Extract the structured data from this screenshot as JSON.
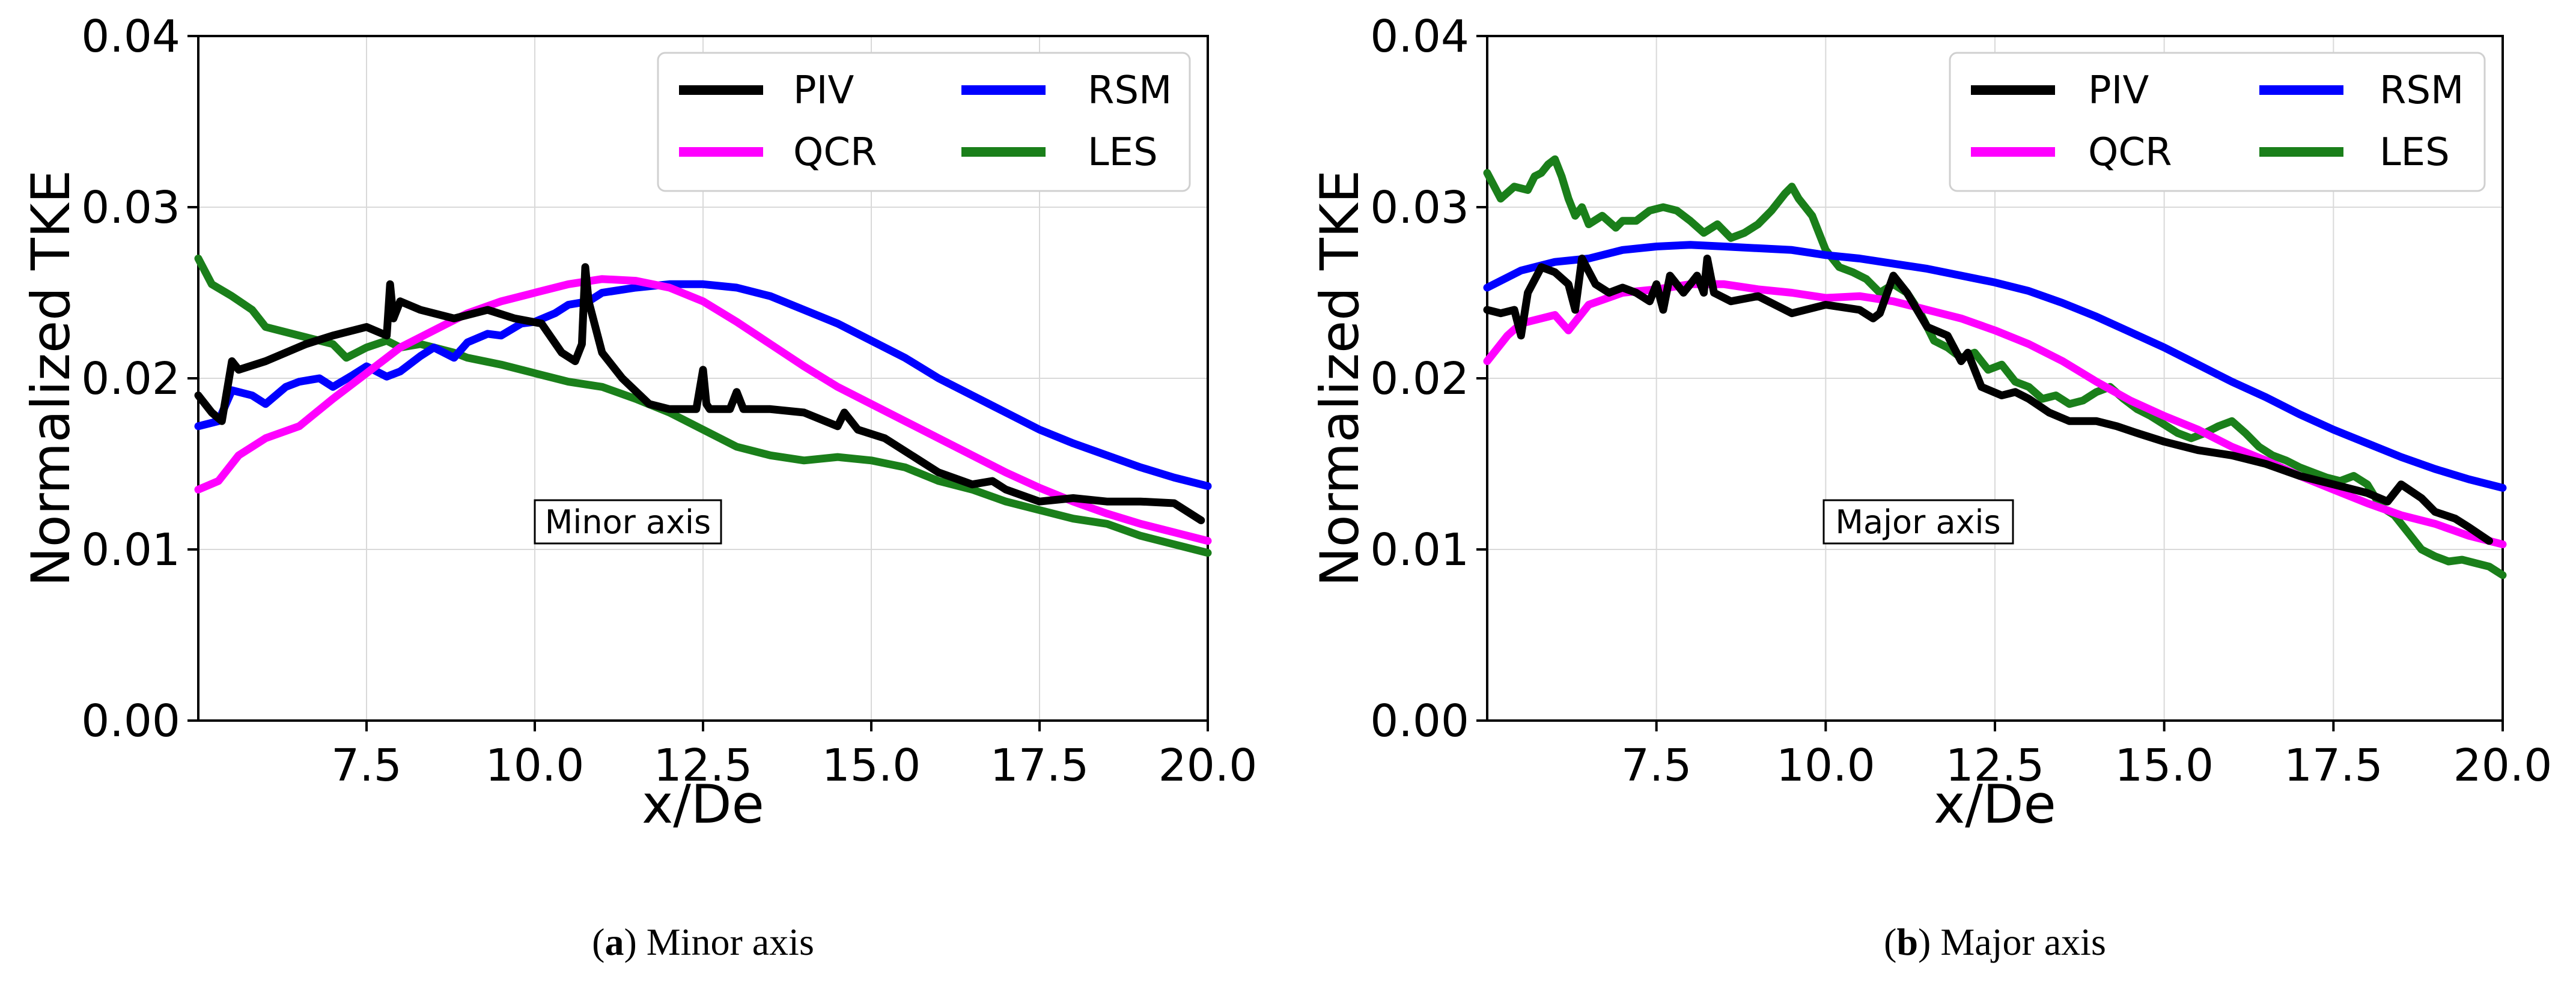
{
  "colors": {
    "PIV": "#000000",
    "QCR": "#ff00ff",
    "RSM": "#0000ff",
    "LES": "#1a7f1a"
  },
  "chart_data": [
    {
      "type": "line",
      "panel": "a",
      "caption_letter": "a",
      "caption_text": "Minor axis",
      "annotation": "Minor axis",
      "xlabel": "x/De",
      "ylabel": "Normalized TKE",
      "xlim": [
        5.0,
        20.0
      ],
      "ylim": [
        0.0,
        0.04
      ],
      "xticks": [
        "7.5",
        "10.0",
        "12.5",
        "15.0",
        "17.5",
        "20.0"
      ],
      "xtick_values": [
        7.5,
        10.0,
        12.5,
        15.0,
        17.5,
        20.0
      ],
      "yticks": [
        "0.00",
        "0.01",
        "0.02",
        "0.03",
        "0.04"
      ],
      "ytick_values": [
        0.0,
        0.01,
        0.02,
        0.03,
        0.04
      ],
      "grid": true,
      "legend": {
        "position": "top-right",
        "columns": 2,
        "entries": [
          "PIV",
          "QCR",
          "RSM",
          "LES"
        ]
      },
      "series": [
        {
          "name": "PIV",
          "x": [
            5.0,
            5.2,
            5.35,
            5.5,
            5.6,
            6.0,
            6.6,
            7.0,
            7.5,
            7.8,
            7.85,
            7.9,
            8.0,
            8.3,
            8.8,
            9.3,
            9.7,
            10.1,
            10.4,
            10.6,
            10.7,
            10.75,
            10.8,
            10.9,
            11.0,
            11.3,
            11.7,
            12.0,
            12.4,
            12.5,
            12.55,
            12.6,
            12.9,
            13.0,
            13.1,
            13.5,
            14.0,
            14.5,
            14.6,
            14.8,
            15.2,
            15.6,
            16.0,
            16.5,
            16.8,
            17.0,
            17.5,
            18.0,
            18.5,
            19.0,
            19.5,
            19.9
          ],
          "values": [
            0.019,
            0.018,
            0.0175,
            0.021,
            0.0205,
            0.021,
            0.022,
            0.0225,
            0.023,
            0.0225,
            0.0255,
            0.0235,
            0.0245,
            0.024,
            0.0235,
            0.024,
            0.0235,
            0.0232,
            0.0215,
            0.021,
            0.022,
            0.0265,
            0.0245,
            0.023,
            0.0215,
            0.02,
            0.0185,
            0.0182,
            0.0182,
            0.0205,
            0.0185,
            0.0182,
            0.0182,
            0.0192,
            0.0182,
            0.0182,
            0.018,
            0.0172,
            0.018,
            0.017,
            0.0165,
            0.0155,
            0.0145,
            0.0138,
            0.014,
            0.0135,
            0.0128,
            0.013,
            0.0128,
            0.0128,
            0.0127,
            0.0117
          ]
        },
        {
          "name": "QCR",
          "x": [
            5.0,
            5.3,
            5.6,
            6.0,
            6.5,
            7.0,
            7.5,
            8.0,
            8.5,
            9.0,
            9.5,
            10.0,
            10.5,
            11.0,
            11.5,
            12.0,
            12.5,
            13.0,
            13.5,
            14.0,
            14.5,
            15.0,
            15.5,
            16.0,
            16.5,
            17.0,
            17.5,
            18.0,
            18.5,
            19.0,
            19.5,
            20.0
          ],
          "values": [
            0.0135,
            0.014,
            0.0155,
            0.0165,
            0.0172,
            0.0188,
            0.0203,
            0.0218,
            0.0228,
            0.0238,
            0.0245,
            0.025,
            0.0255,
            0.0258,
            0.0257,
            0.0253,
            0.0245,
            0.0233,
            0.022,
            0.0207,
            0.0195,
            0.0185,
            0.0175,
            0.0165,
            0.0155,
            0.0145,
            0.0136,
            0.0128,
            0.0121,
            0.0115,
            0.011,
            0.0105
          ]
        },
        {
          "name": "RSM",
          "x": [
            5.0,
            5.3,
            5.5,
            5.8,
            6.0,
            6.3,
            6.5,
            6.8,
            7.0,
            7.3,
            7.5,
            7.8,
            8.0,
            8.3,
            8.5,
            8.8,
            9.0,
            9.3,
            9.5,
            9.8,
            10.0,
            10.3,
            10.5,
            10.8,
            11.0,
            11.5,
            12.0,
            12.5,
            13.0,
            13.5,
            14.0,
            14.5,
            15.0,
            15.5,
            16.0,
            16.5,
            17.0,
            17.5,
            18.0,
            18.5,
            19.0,
            19.5,
            20.0
          ],
          "values": [
            0.0172,
            0.0175,
            0.0193,
            0.019,
            0.0185,
            0.0195,
            0.0198,
            0.02,
            0.0195,
            0.0202,
            0.0207,
            0.0201,
            0.0204,
            0.0213,
            0.0218,
            0.0212,
            0.0221,
            0.0226,
            0.0225,
            0.0232,
            0.0233,
            0.0238,
            0.0243,
            0.0245,
            0.025,
            0.0253,
            0.0255,
            0.0255,
            0.0253,
            0.0248,
            0.024,
            0.0232,
            0.0222,
            0.0212,
            0.02,
            0.019,
            0.018,
            0.017,
            0.0162,
            0.0155,
            0.0148,
            0.0142,
            0.0137
          ]
        },
        {
          "name": "LES",
          "x": [
            5.0,
            5.2,
            5.5,
            5.8,
            6.0,
            6.5,
            7.0,
            7.2,
            7.5,
            7.8,
            8.0,
            8.3,
            8.5,
            8.8,
            9.0,
            9.5,
            10.0,
            10.5,
            11.0,
            11.5,
            12.0,
            12.5,
            13.0,
            13.5,
            14.0,
            14.5,
            15.0,
            15.5,
            16.0,
            16.5,
            17.0,
            17.5,
            18.0,
            18.5,
            19.0,
            19.5,
            20.0
          ],
          "values": [
            0.027,
            0.0255,
            0.0248,
            0.024,
            0.023,
            0.0225,
            0.022,
            0.0212,
            0.0218,
            0.0222,
            0.0218,
            0.022,
            0.0218,
            0.0215,
            0.0212,
            0.0208,
            0.0203,
            0.0198,
            0.0195,
            0.0188,
            0.018,
            0.017,
            0.016,
            0.0155,
            0.0152,
            0.0154,
            0.0152,
            0.0148,
            0.014,
            0.0135,
            0.0128,
            0.0123,
            0.0118,
            0.0115,
            0.0108,
            0.0103,
            0.0098
          ]
        }
      ]
    },
    {
      "type": "line",
      "panel": "b",
      "caption_letter": "b",
      "caption_text": "Major axis",
      "annotation": "Major axis",
      "xlabel": "x/De",
      "ylabel": "Normalized TKE",
      "xlim": [
        5.0,
        20.0
      ],
      "ylim": [
        0.0,
        0.04
      ],
      "xticks": [
        "7.5",
        "10.0",
        "12.5",
        "15.0",
        "17.5",
        "20.0"
      ],
      "xtick_values": [
        7.5,
        10.0,
        12.5,
        15.0,
        17.5,
        20.0
      ],
      "yticks": [
        "0.00",
        "0.01",
        "0.02",
        "0.03",
        "0.04"
      ],
      "ytick_values": [
        0.0,
        0.01,
        0.02,
        0.03,
        0.04
      ],
      "grid": true,
      "legend": {
        "position": "top-right",
        "columns": 2,
        "entries": [
          "PIV",
          "QCR",
          "RSM",
          "LES"
        ]
      },
      "series": [
        {
          "name": "PIV",
          "x": [
            5.0,
            5.2,
            5.4,
            5.5,
            5.6,
            5.8,
            6.0,
            6.2,
            6.3,
            6.4,
            6.6,
            6.8,
            7.0,
            7.2,
            7.4,
            7.5,
            7.6,
            7.7,
            7.8,
            7.9,
            8.0,
            8.1,
            8.2,
            8.25,
            8.35,
            8.6,
            9.0,
            9.5,
            10.0,
            10.5,
            10.7,
            10.8,
            11.0,
            11.2,
            11.5,
            11.8,
            12.0,
            12.1,
            12.3,
            12.6,
            12.8,
            13.0,
            13.3,
            13.6,
            14.0,
            14.3,
            14.6,
            15.0,
            15.5,
            16.0,
            16.5,
            17.0,
            17.5,
            18.0,
            18.3,
            18.5,
            18.8,
            19.0,
            19.3,
            19.5,
            19.8
          ],
          "values": [
            0.024,
            0.0238,
            0.024,
            0.0225,
            0.025,
            0.0265,
            0.0262,
            0.0255,
            0.024,
            0.027,
            0.0255,
            0.025,
            0.0253,
            0.025,
            0.0245,
            0.0255,
            0.024,
            0.026,
            0.0255,
            0.025,
            0.0255,
            0.026,
            0.025,
            0.027,
            0.025,
            0.0245,
            0.0248,
            0.0238,
            0.0243,
            0.024,
            0.0235,
            0.0238,
            0.026,
            0.025,
            0.023,
            0.0225,
            0.021,
            0.0215,
            0.0195,
            0.019,
            0.0192,
            0.0188,
            0.018,
            0.0175,
            0.0175,
            0.0172,
            0.0168,
            0.0163,
            0.0158,
            0.0155,
            0.015,
            0.0143,
            0.0138,
            0.0133,
            0.0128,
            0.0138,
            0.013,
            0.0122,
            0.0118,
            0.0113,
            0.0105
          ]
        },
        {
          "name": "QCR",
          "x": [
            5.0,
            5.3,
            5.5,
            6.0,
            6.2,
            6.5,
            7.0,
            7.5,
            8.0,
            8.5,
            9.0,
            9.5,
            10.0,
            10.5,
            11.0,
            11.5,
            12.0,
            12.5,
            13.0,
            13.5,
            14.0,
            14.5,
            15.0,
            15.5,
            16.0,
            16.5,
            17.0,
            17.5,
            18.0,
            18.5,
            19.0,
            19.5,
            20.0
          ],
          "values": [
            0.021,
            0.0225,
            0.0232,
            0.0237,
            0.0228,
            0.0243,
            0.025,
            0.0252,
            0.0255,
            0.0255,
            0.0252,
            0.025,
            0.0247,
            0.0248,
            0.0245,
            0.024,
            0.0235,
            0.0228,
            0.022,
            0.021,
            0.0198,
            0.0187,
            0.0178,
            0.017,
            0.016,
            0.0152,
            0.0143,
            0.0135,
            0.0127,
            0.012,
            0.0115,
            0.0108,
            0.0103
          ]
        },
        {
          "name": "RSM",
          "x": [
            5.0,
            5.5,
            6.0,
            6.5,
            7.0,
            7.5,
            8.0,
            8.5,
            9.0,
            9.5,
            10.0,
            10.5,
            11.0,
            11.5,
            12.0,
            12.5,
            13.0,
            13.5,
            14.0,
            14.5,
            15.0,
            15.5,
            16.0,
            16.5,
            17.0,
            17.5,
            18.0,
            18.5,
            19.0,
            19.5,
            20.0
          ],
          "values": [
            0.0253,
            0.0263,
            0.0268,
            0.027,
            0.0275,
            0.0277,
            0.0278,
            0.0277,
            0.0276,
            0.0275,
            0.0272,
            0.027,
            0.0267,
            0.0264,
            0.026,
            0.0256,
            0.0251,
            0.0244,
            0.0236,
            0.0227,
            0.0218,
            0.0208,
            0.0198,
            0.0189,
            0.0179,
            0.017,
            0.0162,
            0.0154,
            0.0147,
            0.0141,
            0.0136
          ]
        },
        {
          "name": "LES",
          "x": [
            5.0,
            5.2,
            5.4,
            5.6,
            5.7,
            5.8,
            5.9,
            6.0,
            6.1,
            6.2,
            6.3,
            6.4,
            6.5,
            6.7,
            6.9,
            7.0,
            7.2,
            7.4,
            7.6,
            7.8,
            8.0,
            8.2,
            8.4,
            8.6,
            8.8,
            9.0,
            9.2,
            9.4,
            9.5,
            9.6,
            9.8,
            10.0,
            10.2,
            10.4,
            10.6,
            10.8,
            11.0,
            11.2,
            11.4,
            11.6,
            11.8,
            12.0,
            12.2,
            12.4,
            12.6,
            12.8,
            13.0,
            13.2,
            13.4,
            13.6,
            13.8,
            14.0,
            14.2,
            14.4,
            14.6,
            14.8,
            15.0,
            15.2,
            15.4,
            15.6,
            15.8,
            16.0,
            16.2,
            16.4,
            16.6,
            16.8,
            17.0,
            17.2,
            17.4,
            17.6,
            17.8,
            18.0,
            18.2,
            18.4,
            18.6,
            18.8,
            19.0,
            19.2,
            19.4,
            19.6,
            19.8,
            20.0
          ],
          "values": [
            0.032,
            0.0305,
            0.0312,
            0.031,
            0.0318,
            0.032,
            0.0325,
            0.0328,
            0.0318,
            0.0305,
            0.0295,
            0.03,
            0.029,
            0.0295,
            0.0288,
            0.0292,
            0.0292,
            0.0298,
            0.03,
            0.0298,
            0.0292,
            0.0285,
            0.029,
            0.0282,
            0.0285,
            0.029,
            0.0298,
            0.0308,
            0.0312,
            0.0305,
            0.0295,
            0.0275,
            0.0265,
            0.0262,
            0.0258,
            0.025,
            0.0255,
            0.025,
            0.0238,
            0.0222,
            0.0218,
            0.0212,
            0.0215,
            0.0205,
            0.0208,
            0.0198,
            0.0195,
            0.0188,
            0.019,
            0.0185,
            0.0187,
            0.0192,
            0.0195,
            0.0188,
            0.0182,
            0.0178,
            0.0173,
            0.0168,
            0.0165,
            0.0168,
            0.0172,
            0.0175,
            0.0168,
            0.016,
            0.0155,
            0.0152,
            0.0148,
            0.0145,
            0.0142,
            0.014,
            0.0143,
            0.0138,
            0.0125,
            0.012,
            0.011,
            0.01,
            0.0096,
            0.0093,
            0.0094,
            0.0092,
            0.009,
            0.0085
          ]
        }
      ]
    }
  ]
}
